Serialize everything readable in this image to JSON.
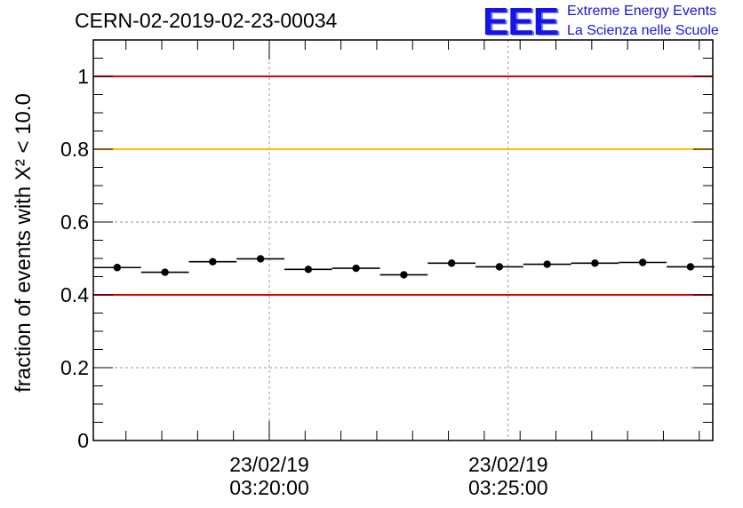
{
  "header": {
    "title": "CERN-02-2019-02-23-00034",
    "logo_mark": "EEE",
    "logo_line1": "Extreme Energy Events",
    "logo_line2": "La Scienza nelle Scuole"
  },
  "colors": {
    "threshold_red": "#e00000",
    "threshold_yellow": "#ffc000",
    "points": "#000000",
    "logo_blue": "#1515e6"
  },
  "chart_data": {
    "type": "scatter",
    "ylabel": "fraction of events with X² < 10.0",
    "ylim": [
      0,
      1.1
    ],
    "yticks": [
      0,
      0.2,
      0.4,
      0.6,
      0.8,
      1
    ],
    "ytick_labels": [
      "0",
      "0.2",
      "0.4",
      "0.6",
      "0.8",
      "1"
    ],
    "xlim": [
      "23/02/19 03:16:19",
      "23/02/19 03:29:17"
    ],
    "xtick_major": [
      {
        "t": "23/02/19 03:20:00",
        "label": [
          "23/02/19",
          "03:20:00"
        ]
      },
      {
        "t": "23/02/19 03:25:00",
        "label": [
          "23/02/19",
          "03:25:00"
        ]
      }
    ],
    "xtick_minor_step_seconds": 45,
    "grid": true,
    "bin_width_seconds": 60,
    "threshold_lines": [
      {
        "y": 1.0,
        "color": "red"
      },
      {
        "y": 0.8,
        "color": "yellow"
      },
      {
        "y": 0.4,
        "color": "red"
      }
    ],
    "points": [
      {
        "t": "23/02/19 03:16:49",
        "y": 0.475
      },
      {
        "t": "23/02/19 03:17:49",
        "y": 0.462
      },
      {
        "t": "23/02/19 03:18:49",
        "y": 0.491
      },
      {
        "t": "23/02/19 03:19:49",
        "y": 0.499
      },
      {
        "t": "23/02/19 03:20:49",
        "y": 0.47
      },
      {
        "t": "23/02/19 03:21:49",
        "y": 0.473
      },
      {
        "t": "23/02/19 03:22:49",
        "y": 0.455
      },
      {
        "t": "23/02/19 03:23:49",
        "y": 0.487
      },
      {
        "t": "23/02/19 03:24:49",
        "y": 0.477
      },
      {
        "t": "23/02/19 03:25:49",
        "y": 0.484
      },
      {
        "t": "23/02/19 03:26:49",
        "y": 0.487
      },
      {
        "t": "23/02/19 03:27:49",
        "y": 0.489
      },
      {
        "t": "23/02/19 03:28:49",
        "y": 0.477
      }
    ]
  }
}
